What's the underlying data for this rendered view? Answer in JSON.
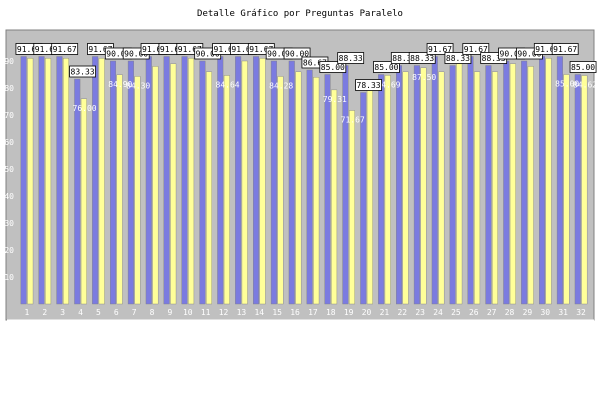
{
  "chart_data": {
    "type": "bar",
    "title": "Detalle Gráfico por Preguntas Paralelo",
    "categories": [
      "1",
      "2",
      "3",
      "4",
      "5",
      "6",
      "7",
      "8",
      "9",
      "10",
      "11",
      "12",
      "13",
      "14",
      "15",
      "16",
      "17",
      "18",
      "19",
      "20",
      "21",
      "22",
      "23",
      "24",
      "25",
      "26",
      "27",
      "28",
      "29",
      "30",
      "31",
      "32"
    ],
    "series": [
      {
        "color": "#7b7be0",
        "values": [
          91.67,
          91.67,
          91.67,
          83.33,
          91.67,
          90.0,
          90.0,
          91.67,
          91.67,
          91.67,
          90.0,
          91.67,
          91.67,
          91.67,
          90.0,
          90.0,
          86.67,
          85.0,
          88.33,
          78.33,
          85.0,
          88.33,
          88.33,
          91.67,
          88.33,
          91.67,
          88.33,
          90.0,
          90.0,
          91.67,
          91.67,
          85.0
        ],
        "labels": [
          "91.67",
          "91.67",
          "91.67",
          "83.33",
          "91.67",
          "90.00",
          "90.00",
          "91.67",
          "91.67",
          "91.67",
          "90.00",
          "91.67",
          "91.67",
          "91.67",
          "90.00",
          "90.00",
          "86.67",
          "85.00",
          "88.33",
          "78.33",
          "85.00",
          "88.33",
          "88.33",
          "91.67",
          "88.33",
          "91.67",
          "88.33",
          "90.00",
          "90.00",
          "91.67",
          "91.67",
          "85.00"
        ]
      },
      {
        "color": "#ffff99",
        "values": [
          91.0,
          91.0,
          91.0,
          76.0,
          91.0,
          84.9,
          84.3,
          88.0,
          89.0,
          91.0,
          86.0,
          84.64,
          90.0,
          91.0,
          84.28,
          86.0,
          84.0,
          79.31,
          71.67,
          81.0,
          84.69,
          86.0,
          87.5,
          86.0,
          90.0,
          86.0,
          86.0,
          89.0,
          88.0,
          91.0,
          85.0,
          84.62
        ],
        "labels": [
          "",
          "",
          "",
          "76.00",
          "",
          "84.90",
          "84.30",
          "",
          "",
          "",
          "",
          "84.64",
          "",
          "",
          "84.28",
          "",
          "",
          "79.31",
          "71.67",
          "",
          "84.69",
          "",
          "87.50",
          "",
          "",
          "",
          "",
          "",
          "",
          "",
          "85.00",
          "84.62"
        ]
      }
    ],
    "ylim": [
      0,
      100
    ],
    "yticks": [
      10,
      20,
      30,
      40,
      50,
      60,
      70,
      80,
      90
    ],
    "background_color": "#c0c0c0",
    "grid": false,
    "legend": false
  }
}
